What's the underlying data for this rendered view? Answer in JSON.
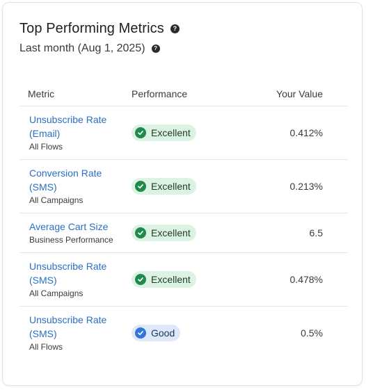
{
  "header": {
    "title": "Top Performing Metrics",
    "subtitle": "Last month (Aug 1, 2025)",
    "help_glyph": "?"
  },
  "table": {
    "columns": {
      "metric": "Metric",
      "performance": "Performance",
      "value": "Your Value"
    },
    "rows": [
      {
        "name_line1": "Unsubscribe Rate",
        "name_line2": "(Email)",
        "scope": "All Flows",
        "rating": "Excellent",
        "value": "0.412%"
      },
      {
        "name_line1": "Conversion Rate",
        "name_line2": "(SMS)",
        "scope": "All Campaigns",
        "rating": "Excellent",
        "value": "0.213%"
      },
      {
        "name_line1": "Average Cart Size",
        "name_line2": "",
        "scope": "Business Performance",
        "rating": "Excellent",
        "value": "6.5"
      },
      {
        "name_line1": "Unsubscribe Rate",
        "name_line2": "(SMS)",
        "scope": "All Campaigns",
        "rating": "Excellent",
        "value": "0.478%"
      },
      {
        "name_line1": "Unsubscribe Rate",
        "name_line2": "(SMS)",
        "scope": "All Flows",
        "rating": "Good",
        "value": "0.5%"
      }
    ]
  },
  "colors": {
    "link": "#2a6ec5",
    "excellent_bg": "#dcf3e3",
    "excellent_icon": "#1e8a4c",
    "good_bg": "#dde9fb",
    "good_icon": "#2f76d8"
  }
}
